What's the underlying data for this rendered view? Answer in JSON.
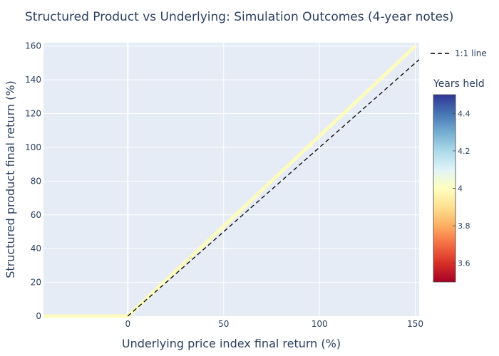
{
  "chart_data": {
    "type": "scatter",
    "title": "Structured Product vs Underlying: Simulation Outcomes (4-year notes)",
    "xlabel": "Underlying price index final return (%)",
    "ylabel": "Structured product final return (%)",
    "xlim": [
      -44,
      152
    ],
    "ylim": [
      0,
      162
    ],
    "xticks": [
      0,
      50,
      100,
      150
    ],
    "yticks": [
      0,
      20,
      40,
      60,
      80,
      100,
      120,
      140,
      160
    ],
    "grid": true,
    "series": [
      {
        "kind": "simulated-outcomes",
        "x": [
          -44,
          -30,
          -15,
          0,
          25,
          50,
          75,
          100,
          125,
          150
        ],
        "y": [
          0,
          0,
          0,
          0,
          26.7,
          53.3,
          80,
          106.7,
          133.3,
          160
        ],
        "color_value": 4,
        "color": "#fefcbb"
      },
      {
        "name": "1:1 line",
        "kind": "reference",
        "x": [
          0,
          152
        ],
        "y": [
          0,
          152
        ],
        "dash": "dash",
        "color": "#000000"
      }
    ],
    "legend": {
      "position": "top-right",
      "entries": [
        "1:1 line"
      ]
    },
    "colorbar": {
      "title": "Years held",
      "range": [
        3.5,
        4.5
      ],
      "ticks": [
        "3.6",
        "3.8",
        "4",
        "4.2",
        "4.4"
      ],
      "tick_values": [
        3.6,
        3.8,
        4,
        4.2,
        4.4
      ],
      "colorscale": "RdYlBu",
      "colors": [
        "#a50026",
        "#d73027",
        "#f46d43",
        "#fdae61",
        "#fee090",
        "#ffffbf",
        "#e0f3f8",
        "#abd9e9",
        "#74add1",
        "#4575b4",
        "#313695"
      ]
    },
    "plot_background": "#e5ecf6",
    "text_color": "#2a3f5f"
  }
}
